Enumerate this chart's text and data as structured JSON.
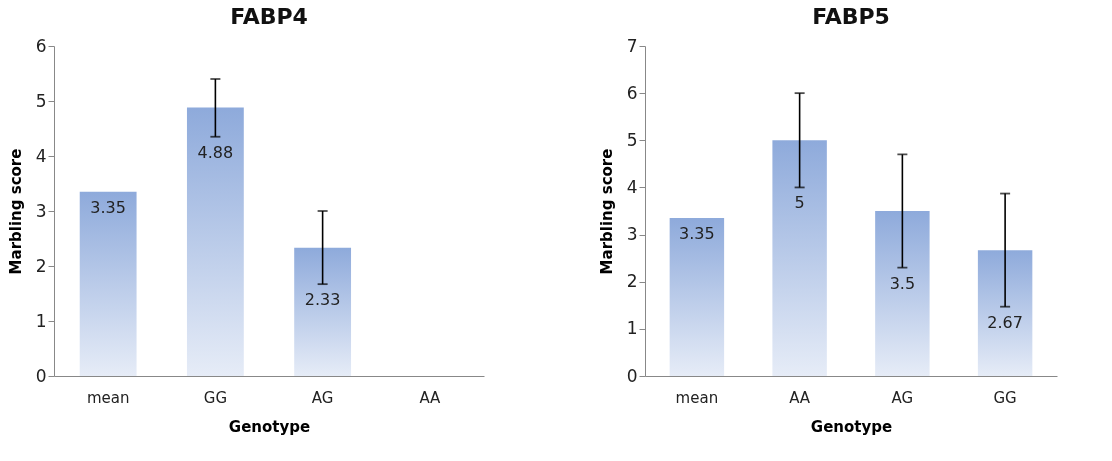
{
  "chart_data": [
    {
      "type": "bar",
      "title": "FABP4",
      "xlabel": "Genotype",
      "ylabel": "Marbling score",
      "categories": [
        "mean",
        "GG",
        "AG",
        "AA"
      ],
      "values": [
        3.35,
        4.88,
        2.33,
        null
      ],
      "errors": [
        null,
        [
          4.35,
          5.4
        ],
        [
          1.67,
          3.0
        ],
        null
      ],
      "color": "#8eaadb",
      "ylim": [
        0,
        6
      ],
      "yticks": [
        0,
        1,
        2,
        3,
        4,
        5,
        6
      ],
      "data_labels": true
    },
    {
      "type": "bar",
      "title": "FABP5",
      "xlabel": "Genotype",
      "ylabel": "Marbling score",
      "categories": [
        "mean",
        "AA",
        "AG",
        "GG"
      ],
      "values": [
        3.35,
        5,
        3.5,
        2.67
      ],
      "errors": [
        null,
        [
          4,
          6
        ],
        [
          2.3,
          4.7
        ],
        [
          1.47,
          3.87
        ]
      ],
      "color": "#8eaadb",
      "ylim": [
        0,
        7
      ],
      "yticks": [
        0,
        1,
        2,
        3,
        4,
        5,
        6,
        7
      ],
      "data_labels": true
    }
  ]
}
